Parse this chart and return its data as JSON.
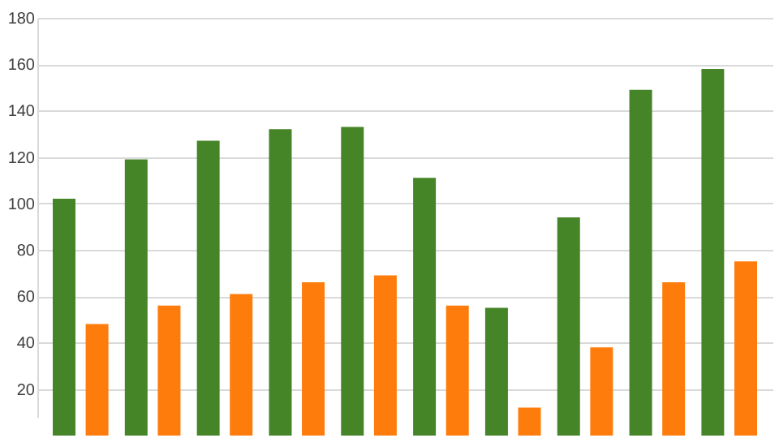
{
  "chart_data": {
    "type": "bar",
    "categories": [
      null,
      null,
      null,
      null,
      null,
      null,
      null,
      null,
      null,
      null
    ],
    "series": [
      {
        "color": "#468428",
        "values": [
          102,
          119,
          127,
          132,
          133,
          111,
          55,
          94,
          149,
          158
        ]
      },
      {
        "color": "#fe7c0c",
        "values": [
          48,
          56,
          61,
          66,
          69,
          56,
          12,
          38,
          66,
          75
        ]
      }
    ],
    "ylim": [
      8,
      180
    ],
    "yticks": [
      20,
      40,
      60,
      80,
      100,
      120,
      140,
      160,
      180
    ],
    "grid": "y",
    "tick_labels": "y"
  }
}
